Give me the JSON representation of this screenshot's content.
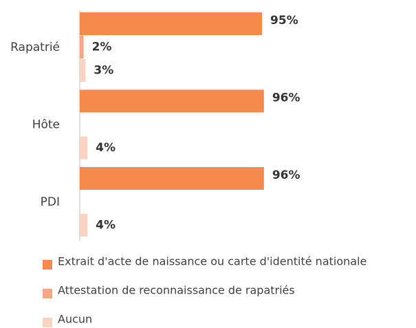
{
  "chart_data": {
    "type": "bar",
    "orientation": "horizontal",
    "categories": [
      "Rapatrié",
      "Hôte",
      "PDI"
    ],
    "series": [
      {
        "name": "Extrait d'acte de naissance ou carte d'identité nationale",
        "color": "#f58a4e",
        "values": [
          95,
          96,
          96
        ],
        "value_labels": [
          "95%",
          "96%",
          "96%"
        ]
      },
      {
        "name": "Attestation de reconnaissance de rapatriés",
        "color": "#f7a882",
        "values": [
          2,
          null,
          null
        ],
        "value_labels": [
          "2%",
          null,
          null
        ]
      },
      {
        "name": "Aucun",
        "color": "#fbd3c2",
        "values": [
          3,
          4,
          4
        ],
        "value_labels": [
          "3%",
          "4%",
          "4%"
        ]
      }
    ],
    "xlim": [
      0,
      100
    ]
  }
}
